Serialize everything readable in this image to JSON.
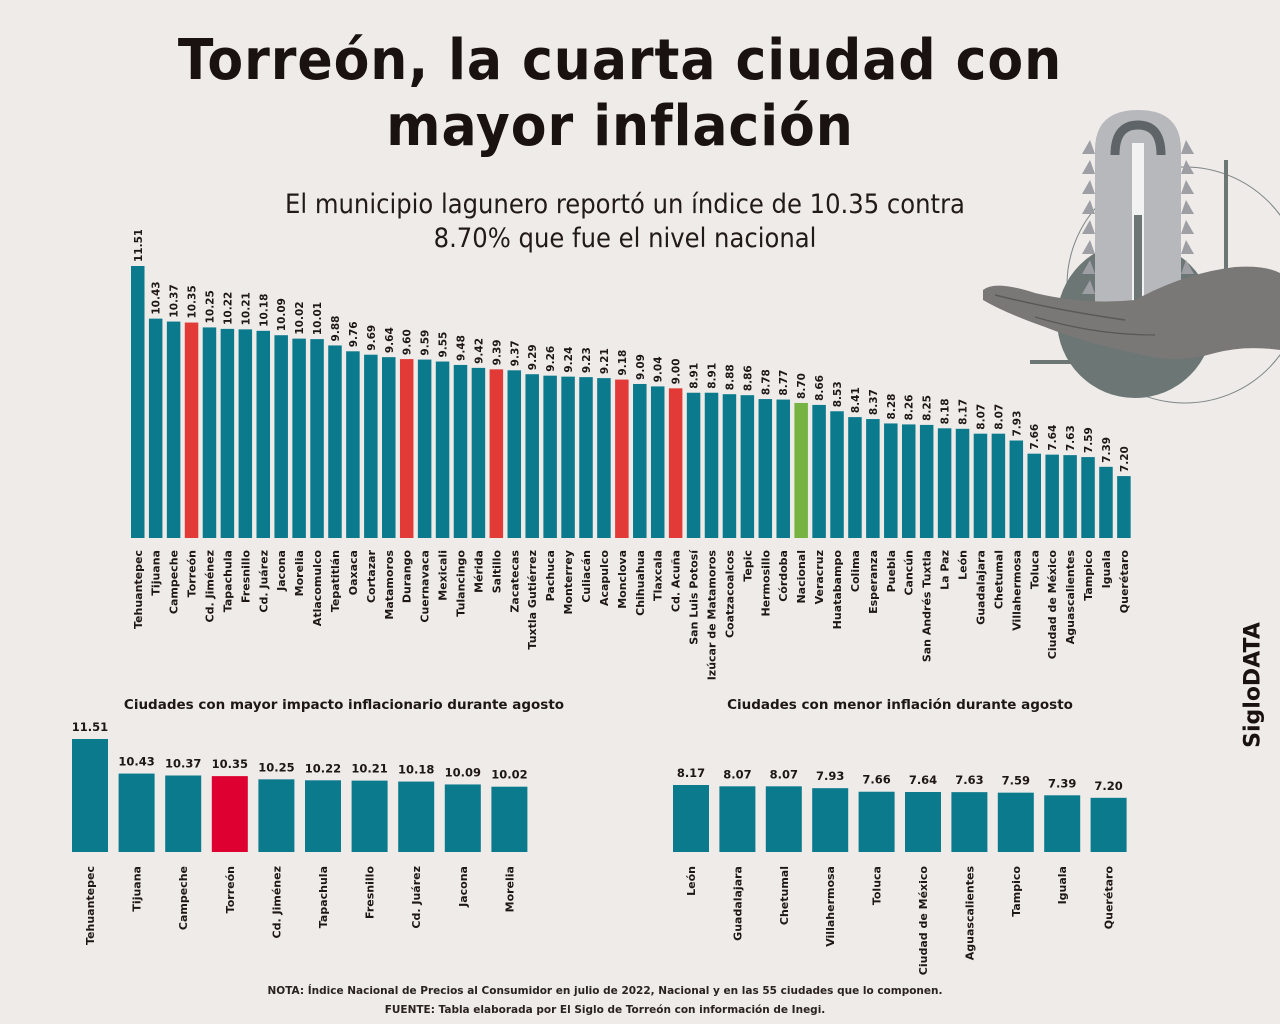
{
  "header": {
    "title_line1": "Torreón, la cuarta ciudad con",
    "title_line2": "mayor inflación",
    "subtitle_line1": "El municipio lagunero reportó un índice de 10.35 contra",
    "subtitle_line2": "8.70% que fue el nivel nacional"
  },
  "colors": {
    "default_bar": "#0b7a8c",
    "highlight_bar": "#e23a36",
    "national_bar": "#76b342",
    "torreon_small_bar": "#dd0030",
    "background": "#eeebe9",
    "illustration_gray": "#6b7675"
  },
  "illustration": {
    "icon": "hand-holding-thermometer-arrow-icon"
  },
  "brand": {
    "label": "SigloDATA"
  },
  "footer": {
    "note": "NOTA: Índice Nacional de Precios al Consumidor en julio de 2022, Nacional y en las 55 ciudades que lo componen.",
    "source": "FUENTE: Tabla elaborada por El Siglo de Torreón con información de Inegi."
  },
  "chart_data": [
    {
      "id": "main",
      "type": "bar",
      "title": "",
      "xlabel": "",
      "ylabel": "",
      "ylim": [
        5.93,
        11.51
      ],
      "grid": false,
      "legend": "none",
      "value_label_format": "2dp",
      "categories": [
        "Tehuantepec",
        "Tijuana",
        "Campeche",
        "Torreón",
        "Cd. Jiménez",
        "Tapachula",
        "Fresnillo",
        "Cd. Juárez",
        "Jacona",
        "Morelia",
        "Atlacomulco",
        "Tepatitlán",
        "Oaxaca",
        "Cortazar",
        "Matamoros",
        "Durango",
        "Cuernavaca",
        "Mexicali",
        "Tulancingo",
        "Mérida",
        "Saltillo",
        "Zacatecas",
        "Tuxtla Gutiérrez",
        "Pachuca",
        "Monterrey",
        "Culiacán",
        "Acapulco",
        "Monclova",
        "Chihuahua",
        "Tlaxcala",
        "Cd. Acuña",
        "San Luis Potosí",
        "Izúcar de Matamoros",
        "Coatzacoalcos",
        "Tepic",
        "Hermosillo",
        "Córdoba",
        "Nacional",
        "Veracruz",
        "Huatabampo",
        "Colima",
        "Esperanza",
        "Puebla",
        "Cancún",
        "San Andrés Tuxtla",
        "La Paz",
        "León",
        "Guadalajara",
        "Chetumal",
        "Villahermosa",
        "Toluca",
        "Ciudad de México",
        "Aguascalientes",
        "Tampico",
        "Iguala",
        "Querétaro"
      ],
      "values": [
        11.51,
        10.43,
        10.37,
        10.35,
        10.25,
        10.22,
        10.21,
        10.18,
        10.09,
        10.02,
        10.01,
        9.88,
        9.76,
        9.69,
        9.64,
        9.6,
        9.59,
        9.55,
        9.48,
        9.42,
        9.39,
        9.37,
        9.29,
        9.26,
        9.24,
        9.23,
        9.21,
        9.18,
        9.09,
        9.04,
        9.0,
        8.91,
        8.91,
        8.88,
        8.86,
        8.78,
        8.77,
        8.7,
        8.66,
        8.53,
        8.41,
        8.37,
        8.28,
        8.26,
        8.25,
        8.18,
        8.17,
        8.07,
        8.07,
        7.93,
        7.66,
        7.64,
        7.63,
        7.59,
        7.39,
        7.2
      ],
      "highlight": [
        "Torreón",
        "Durango",
        "Saltillo",
        "Monclova",
        "Cd. Acuña"
      ],
      "national": "Nacional"
    },
    {
      "id": "top",
      "type": "bar",
      "title": "Ciudades con mayor impacto inflacionario durante agosto",
      "xlabel": "",
      "ylabel": "",
      "ylim": [
        7.98,
        11.51
      ],
      "grid": false,
      "legend": "none",
      "categories": [
        "Tehuantepec",
        "Tijuana",
        "Campeche",
        "Torreón",
        "Cd. Jiménez",
        "Tapachula",
        "Fresnillo",
        "Cd. Juárez",
        "Jacona",
        "Morelia"
      ],
      "values": [
        11.51,
        10.43,
        10.37,
        10.35,
        10.25,
        10.22,
        10.21,
        10.18,
        10.09,
        10.02
      ],
      "highlight": [
        "Torreón"
      ]
    },
    {
      "id": "low",
      "type": "bar",
      "title": "Ciudades con menor inflación durante agosto",
      "xlabel": "",
      "ylabel": "",
      "ylim": [
        3.1,
        8.17
      ],
      "grid": false,
      "legend": "none",
      "categories": [
        "León",
        "Guadalajara",
        "Chetumal",
        "Villahermosa",
        "Toluca",
        "Ciudad de México",
        "Aguascalientes",
        "Tampico",
        "Iguala",
        "Querétaro"
      ],
      "values": [
        8.17,
        8.07,
        8.07,
        7.93,
        7.66,
        7.64,
        7.63,
        7.59,
        7.39,
        7.2
      ],
      "highlight": []
    }
  ]
}
